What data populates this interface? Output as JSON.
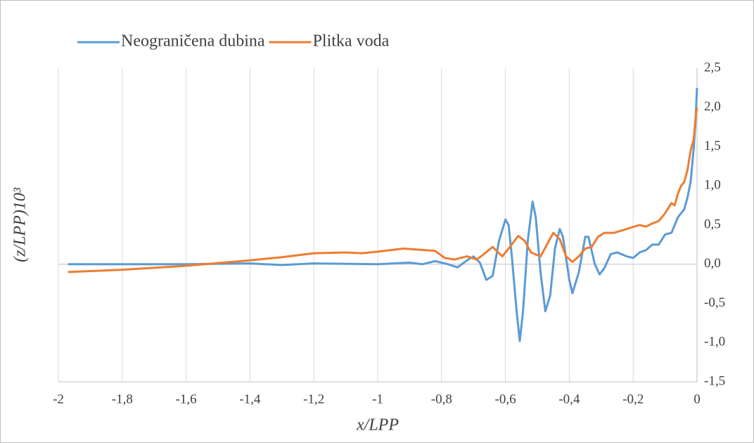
{
  "chart_data": {
    "type": "line",
    "x_label": "x/LPP",
    "y_label": "(z/LPP)10³",
    "legend": "top-left",
    "xlim": [
      -2,
      0
    ],
    "xticks": [
      -2,
      {
        "value": -1.8,
        "label": "-1,8"
      },
      {
        "value": -1.6,
        "label": "-1,6"
      },
      {
        "value": -1.4,
        "label": "-1,4"
      },
      {
        "value": -1.2,
        "label": "-1,2"
      },
      -1,
      {
        "value": -0.8,
        "label": "-0,8"
      },
      {
        "value": -0.6,
        "label": "-0,6"
      },
      {
        "value": -0.4,
        "label": "-0,4"
      },
      {
        "value": -0.2,
        "label": "-0,2"
      },
      0
    ],
    "ylim": [
      -1.5,
      2.5
    ],
    "yticks": [
      {
        "value": -1.5,
        "label": "-1,5"
      },
      {
        "value": -1.0,
        "label": "-1,0"
      },
      {
        "value": -0.5,
        "label": "-0,5"
      },
      {
        "value": 0,
        "label": "0,0"
      },
      {
        "value": 0.5,
        "label": "0,5"
      },
      {
        "value": 1.0,
        "label": "1,0"
      },
      {
        "value": 1.5,
        "label": "1,5"
      },
      {
        "value": 2.0,
        "label": "2,0"
      },
      {
        "value": 2.5,
        "label": "2,5"
      }
    ],
    "grid": true,
    "series": [
      {
        "name": "Neograničena dubina",
        "color": "#5b9bd5",
        "x": [
          -1.97,
          -1.8,
          -1.6,
          -1.4,
          -1.3,
          -1.2,
          -1.0,
          -0.9,
          -0.86,
          -0.82,
          -0.78,
          -0.75,
          -0.72,
          -0.7,
          -0.68,
          -0.66,
          -0.64,
          -0.62,
          -0.6,
          -0.59,
          -0.58,
          -0.565,
          -0.555,
          -0.545,
          -0.53,
          -0.515,
          -0.505,
          -0.49,
          -0.475,
          -0.46,
          -0.445,
          -0.43,
          -0.42,
          -0.4,
          -0.39,
          -0.37,
          -0.35,
          -0.34,
          -0.32,
          -0.305,
          -0.29,
          -0.27,
          -0.25,
          -0.22,
          -0.2,
          -0.18,
          -0.16,
          -0.14,
          -0.12,
          -0.1,
          -0.08,
          -0.06,
          -0.04,
          -0.03,
          -0.02,
          -0.01,
          -0.005,
          0
        ],
        "values": [
          0,
          0,
          0,
          0.01,
          -0.01,
          0.01,
          0,
          0.02,
          0,
          0.04,
          0,
          -0.04,
          0.05,
          0.1,
          0.02,
          -0.2,
          -0.15,
          0.3,
          0.57,
          0.5,
          0.1,
          -0.6,
          -0.98,
          -0.6,
          0.3,
          0.8,
          0.6,
          -0.1,
          -0.6,
          -0.4,
          0.2,
          0.45,
          0.35,
          -0.2,
          -0.37,
          -0.1,
          0.35,
          0.35,
          0,
          -0.13,
          -0.05,
          0.13,
          0.15,
          0.1,
          0.08,
          0.15,
          0.18,
          0.25,
          0.25,
          0.38,
          0.4,
          0.6,
          0.7,
          0.85,
          1.05,
          1.5,
          1.8,
          2.25
        ]
      },
      {
        "name": "Plitka voda",
        "color": "#ed7d31",
        "x": [
          -1.97,
          -1.8,
          -1.6,
          -1.4,
          -1.3,
          -1.2,
          -1.1,
          -1.05,
          -1.0,
          -0.92,
          -0.85,
          -0.82,
          -0.79,
          -0.76,
          -0.72,
          -0.69,
          -0.67,
          -0.64,
          -0.61,
          -0.59,
          -0.56,
          -0.54,
          -0.52,
          -0.49,
          -0.47,
          -0.45,
          -0.43,
          -0.41,
          -0.39,
          -0.37,
          -0.35,
          -0.33,
          -0.31,
          -0.29,
          -0.26,
          -0.22,
          -0.18,
          -0.16,
          -0.14,
          -0.12,
          -0.1,
          -0.08,
          -0.07,
          -0.06,
          -0.05,
          -0.04,
          -0.03,
          -0.02,
          -0.01,
          -0.005,
          0
        ],
        "values": [
          -0.1,
          -0.07,
          -0.02,
          0.05,
          0.09,
          0.14,
          0.15,
          0.14,
          0.16,
          0.2,
          0.18,
          0.17,
          0.08,
          0.06,
          0.1,
          0.06,
          0.12,
          0.22,
          0.1,
          0.2,
          0.36,
          0.3,
          0.15,
          0.1,
          0.25,
          0.4,
          0.32,
          0.1,
          0.03,
          0.1,
          0.2,
          0.22,
          0.35,
          0.4,
          0.4,
          0.45,
          0.5,
          0.48,
          0.52,
          0.55,
          0.65,
          0.78,
          0.75,
          0.9,
          1.0,
          1.05,
          1.2,
          1.45,
          1.6,
          1.85,
          2.0
        ]
      }
    ]
  }
}
